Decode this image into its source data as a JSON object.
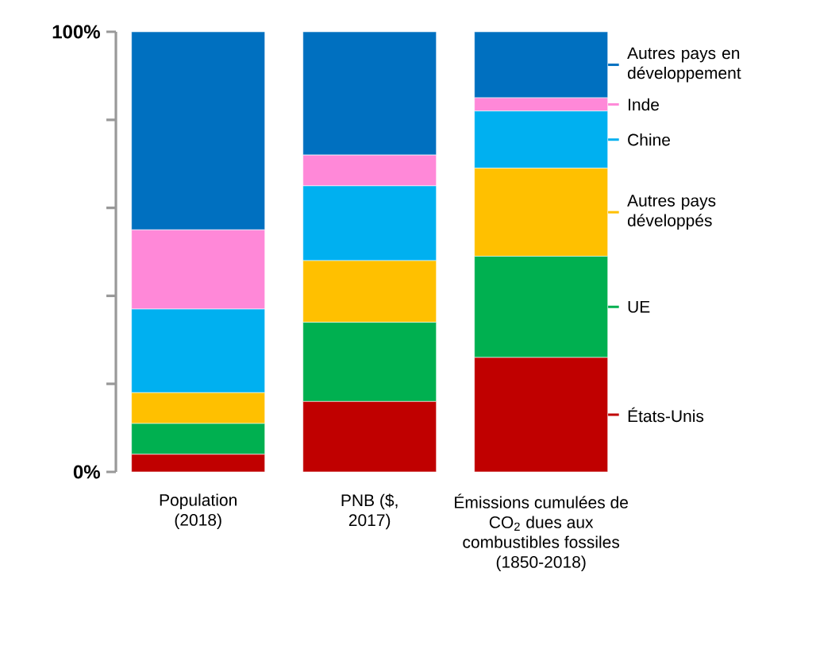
{
  "chart_data": {
    "type": "bar",
    "stacked": true,
    "categories": [
      "Population (2018)",
      "PNB ($, 2017)",
      "Émissions cumulées de CO$_{2}$ dues aux combustibles fossiles (1850-2018)"
    ],
    "series": [
      {
        "name": "États-Unis",
        "color": "#c00000",
        "values": [
          4,
          16,
          26
        ]
      },
      {
        "name": "UE",
        "color": "#00b050",
        "values": [
          7,
          18,
          23
        ]
      },
      {
        "name": "Autres pays développés",
        "color": "#ffc000",
        "values": [
          7,
          14,
          20
        ]
      },
      {
        "name": "Chine",
        "color": "#00b0f0",
        "values": [
          19,
          17,
          13
        ]
      },
      {
        "name": "Inde",
        "color": "#ff88d8",
        "values": [
          18,
          7,
          3
        ]
      },
      {
        "name": "Autres pays en développement",
        "color": "#0070c0",
        "values": [
          45,
          28,
          15
        ]
      }
    ],
    "ylim": [
      0,
      100
    ],
    "yticks": [
      {
        "value": 0,
        "label": "0%"
      },
      {
        "value": 20,
        "label": null
      },
      {
        "value": 40,
        "label": null
      },
      {
        "value": 60,
        "label": null
      },
      {
        "value": 80,
        "label": null
      },
      {
        "value": 100,
        "label": "100%"
      }
    ],
    "grid": false,
    "legend": "right"
  }
}
